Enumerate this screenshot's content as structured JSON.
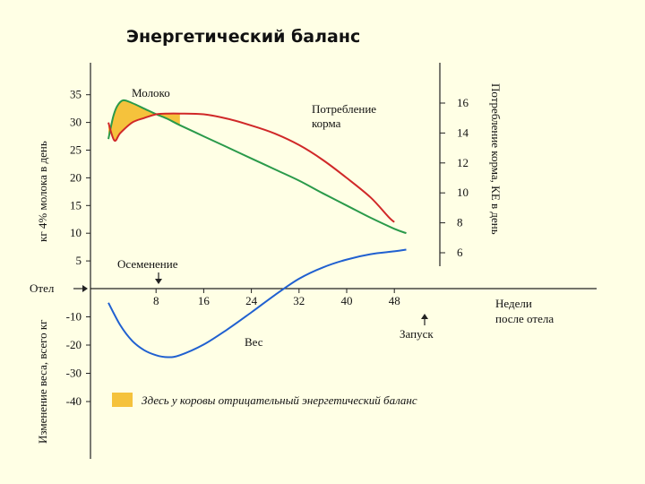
{
  "chart_data": {
    "type": "line",
    "title": "Энергетический баланс",
    "x": {
      "label_line1": "Недели",
      "label_line2": "после отела",
      "ticks": [
        8,
        16,
        24,
        32,
        40,
        48
      ],
      "range": [
        0,
        55
      ]
    },
    "y_left_upper": {
      "label": "кг 4% молока в день",
      "ticks": [
        5,
        10,
        15,
        20,
        25,
        30,
        35
      ],
      "range": [
        0,
        38
      ]
    },
    "y_left_lower": {
      "label": "Изменение веса, всего кг",
      "ticks": [
        -10,
        -20,
        -30,
        -40
      ],
      "range": [
        -56,
        0
      ]
    },
    "y_right": {
      "label": "Потребление корма, КЕ в день",
      "ticks": [
        6,
        8,
        10,
        12,
        14,
        16
      ],
      "range": [
        6,
        17
      ]
    },
    "series": [
      {
        "name": "Молоко",
        "axis": "left_upper",
        "color": "#2A9A4A",
        "points": [
          [
            0,
            27
          ],
          [
            0.8,
            31
          ],
          [
            1.5,
            33
          ],
          [
            2.5,
            34
          ],
          [
            4,
            33.5
          ],
          [
            6,
            32.5
          ],
          [
            8,
            31.5
          ],
          [
            10,
            30.6
          ],
          [
            12,
            29.5
          ],
          [
            16,
            27.5
          ],
          [
            20,
            25.5
          ],
          [
            24,
            23.5
          ],
          [
            28,
            21.5
          ],
          [
            32,
            19.5
          ],
          [
            36,
            17.2
          ],
          [
            40,
            15
          ],
          [
            44,
            12.8
          ],
          [
            48,
            10.8
          ],
          [
            50,
            10
          ]
        ]
      },
      {
        "name": "Потребление корма",
        "axis": "right",
        "color": "#D02828",
        "points": [
          [
            0,
            14.7
          ],
          [
            1,
            13.5
          ],
          [
            2,
            14
          ],
          [
            4,
            14.7
          ],
          [
            6,
            15
          ],
          [
            8,
            15.25
          ],
          [
            10,
            15.3
          ],
          [
            12,
            15.3
          ],
          [
            16,
            15.25
          ],
          [
            20,
            14.95
          ],
          [
            24,
            14.5
          ],
          [
            28,
            13.95
          ],
          [
            32,
            13.2
          ],
          [
            36,
            12.2
          ],
          [
            40,
            11
          ],
          [
            44,
            9.7
          ],
          [
            47,
            8.4
          ],
          [
            48,
            8.05
          ]
        ]
      },
      {
        "name": "Вес",
        "axis": "left_lower",
        "color": "#2060D0",
        "points": [
          [
            0,
            -5
          ],
          [
            2,
            -13
          ],
          [
            4,
            -18.5
          ],
          [
            6,
            -21.8
          ],
          [
            8,
            -23.6
          ],
          [
            10,
            -24.3
          ],
          [
            12,
            -23.6
          ],
          [
            16,
            -19.8
          ],
          [
            20,
            -14.4
          ],
          [
            24,
            -8.4
          ],
          [
            28,
            -2.2
          ],
          [
            32,
            3.5
          ],
          [
            36,
            7.5
          ],
          [
            40,
            10.3
          ],
          [
            44,
            12.2
          ],
          [
            48,
            13.2
          ],
          [
            50,
            13.8
          ]
        ]
      }
    ],
    "annotations": {
      "otel": "Отел",
      "osemenenie": "Осеменение",
      "osemenenie_week": 8,
      "zapusk": "Запуск",
      "zapusk_week": 48,
      "milk_label": "Молоко",
      "feed_label_line1": "Потребление",
      "feed_label_line2": "корма",
      "weight_label": "Вес"
    },
    "legend": {
      "text": "Здесь у коровы отрицательный энергетический баланс",
      "color": "#F5C23C",
      "placement": "bottom"
    },
    "negative_balance_fill": "#F5C23C"
  }
}
